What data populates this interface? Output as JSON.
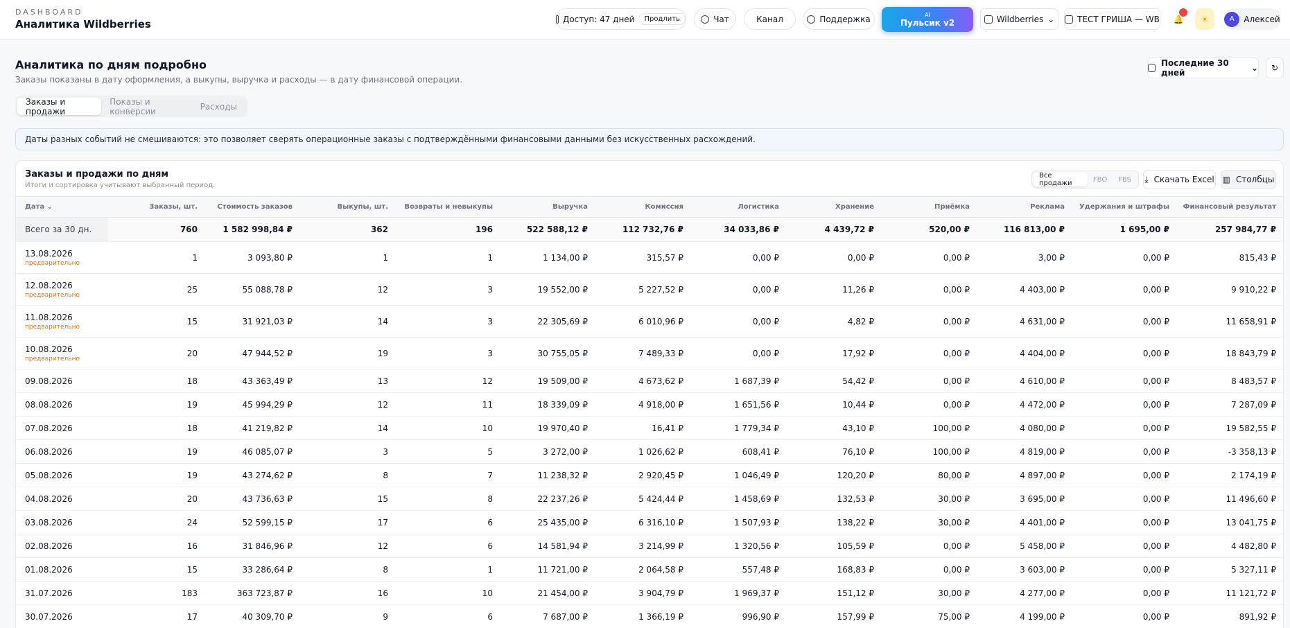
{
  "header": {
    "eyebrow": "DASHBOARD",
    "title": "Аналитика Wildberries",
    "access": "Доступ: 47 дней",
    "extend": "Продлить",
    "chat": "Чат",
    "channel": "Канал",
    "support": "Поддержка",
    "ai_badge": "AI",
    "ai_name": "Пульсик v2",
    "marketplace": "Wildberries",
    "store": "ТЕСТ ГРИША — WB",
    "avatar": "А",
    "user": "Алексей"
  },
  "section": {
    "title": "Аналитика по дням подробно",
    "subtitle": "Заказы показаны в дату оформления, а выкупы, выручка и расходы — в дату финансовой операции.",
    "period": "Последние 30 дней",
    "tabs": [
      "Заказы и продажи",
      "Показы и конверсии",
      "Расходы"
    ],
    "banner": "Даты разных событий не смешиваются: это позволяет сверять операционные заказы с подтверждёнными финансовыми данными без искусственных расхождений."
  },
  "card": {
    "title": "Заказы и продажи по дням",
    "subtitle": "Итоги и сортировка учитывают выбранный период.",
    "filters": [
      "Все продажи",
      "FBO",
      "FBS"
    ],
    "excel": "Скачать Excel",
    "columns_button": "Столбцы"
  },
  "table": {
    "columns": [
      "Дата",
      "Заказы, шт.",
      "Стоимость заказов",
      "Выкупы, шт.",
      "Возвраты и невыкупы",
      "Выручка",
      "Комиссия",
      "Логистика",
      "Хранение",
      "Приёмка",
      "Реклама",
      "Удержания и штрафы",
      "Финансовый результат"
    ],
    "total": {
      "label": "Всего за 30 дн.",
      "cells": [
        "760",
        "1 582 998,84 ₽",
        "362",
        "196",
        "522 588,12 ₽",
        "112 732,76 ₽",
        "34 033,86 ₽",
        "4 439,72 ₽",
        "520,00 ₽",
        "116 813,00 ₽",
        "1 695,00 ₽",
        "257 984,77 ₽"
      ]
    },
    "rows": [
      {
        "date": "13.08.2026",
        "note": "предварительно",
        "cells": [
          "1",
          "3 093,80 ₽",
          "1",
          "1",
          "1 134,00 ₽",
          "315,57 ₽",
          "0,00 ₽",
          "0,00 ₽",
          "0,00 ₽",
          "3,00 ₽",
          "0,00 ₽",
          "815,43 ₽"
        ]
      },
      {
        "date": "12.08.2026",
        "note": "предварительно",
        "cells": [
          "25",
          "55 088,78 ₽",
          "12",
          "3",
          "19 552,00 ₽",
          "5 227,52 ₽",
          "0,00 ₽",
          "11,26 ₽",
          "0,00 ₽",
          "4 403,00 ₽",
          "0,00 ₽",
          "9 910,22 ₽"
        ]
      },
      {
        "date": "11.08.2026",
        "note": "предварительно",
        "cells": [
          "15",
          "31 921,03 ₽",
          "14",
          "3",
          "22 305,69 ₽",
          "6 010,96 ₽",
          "0,00 ₽",
          "4,82 ₽",
          "0,00 ₽",
          "4 631,00 ₽",
          "0,00 ₽",
          "11 658,91 ₽"
        ]
      },
      {
        "date": "10.08.2026",
        "note": "предварительно",
        "cells": [
          "20",
          "47 944,52 ₽",
          "19",
          "3",
          "30 755,05 ₽",
          "7 489,33 ₽",
          "0,00 ₽",
          "17,92 ₽",
          "0,00 ₽",
          "4 404,00 ₽",
          "0,00 ₽",
          "18 843,79 ₽"
        ]
      },
      {
        "date": "09.08.2026",
        "cells": [
          "18",
          "43 363,49 ₽",
          "13",
          "12",
          "19 509,00 ₽",
          "4 673,62 ₽",
          "1 687,39 ₽",
          "54,42 ₽",
          "0,00 ₽",
          "4 610,00 ₽",
          "0,00 ₽",
          "8 483,57 ₽"
        ]
      },
      {
        "date": "08.08.2026",
        "cells": [
          "19",
          "45 994,29 ₽",
          "12",
          "11",
          "18 339,09 ₽",
          "4 918,00 ₽",
          "1 651,56 ₽",
          "10,44 ₽",
          "0,00 ₽",
          "4 472,00 ₽",
          "0,00 ₽",
          "7 287,09 ₽"
        ]
      },
      {
        "date": "07.08.2026",
        "cells": [
          "18",
          "41 219,82 ₽",
          "14",
          "10",
          "19 970,40 ₽",
          "16,41 ₽",
          "1 779,34 ₽",
          "43,10 ₽",
          "100,00 ₽",
          "4 080,00 ₽",
          "0,00 ₽",
          "19 582,55 ₽"
        ]
      },
      {
        "date": "06.08.2026",
        "cells": [
          "19",
          "46 085,07 ₽",
          "3",
          "5",
          "3 272,00 ₽",
          "1 026,62 ₽",
          "608,41 ₽",
          "76,10 ₽",
          "100,00 ₽",
          "4 819,00 ₽",
          "0,00 ₽",
          "-3 358,13 ₽"
        ]
      },
      {
        "date": "05.08.2026",
        "cells": [
          "19",
          "43 274,62 ₽",
          "8",
          "7",
          "11 238,32 ₽",
          "2 920,45 ₽",
          "1 046,49 ₽",
          "120,20 ₽",
          "80,00 ₽",
          "4 897,00 ₽",
          "0,00 ₽",
          "2 174,19 ₽"
        ]
      },
      {
        "date": "04.08.2026",
        "cells": [
          "20",
          "43 736,63 ₽",
          "15",
          "8",
          "22 237,26 ₽",
          "5 424,44 ₽",
          "1 458,69 ₽",
          "132,53 ₽",
          "30,00 ₽",
          "3 695,00 ₽",
          "0,00 ₽",
          "11 496,60 ₽"
        ]
      },
      {
        "date": "03.08.2026",
        "cells": [
          "24",
          "52 599,15 ₽",
          "17",
          "6",
          "25 435,00 ₽",
          "6 316,10 ₽",
          "1 507,93 ₽",
          "138,22 ₽",
          "30,00 ₽",
          "4 401,00 ₽",
          "0,00 ₽",
          "13 041,75 ₽"
        ]
      },
      {
        "date": "02.08.2026",
        "cells": [
          "16",
          "31 846,96 ₽",
          "12",
          "6",
          "14 581,94 ₽",
          "3 214,99 ₽",
          "1 320,56 ₽",
          "105,59 ₽",
          "0,00 ₽",
          "5 458,00 ₽",
          "0,00 ₽",
          "4 482,80 ₽"
        ]
      },
      {
        "date": "01.08.2026",
        "cells": [
          "15",
          "33 286,64 ₽",
          "8",
          "1",
          "11 721,00 ₽",
          "2 064,58 ₽",
          "557,48 ₽",
          "168,83 ₽",
          "0,00 ₽",
          "3 603,00 ₽",
          "0,00 ₽",
          "5 327,11 ₽"
        ]
      },
      {
        "date": "31.07.2026",
        "cells": [
          "183",
          "363 723,87 ₽",
          "16",
          "10",
          "21 454,00 ₽",
          "3 904,79 ₽",
          "1 969,37 ₽",
          "151,12 ₽",
          "30,00 ₽",
          "4 277,00 ₽",
          "0,00 ₽",
          "11 121,72 ₽"
        ]
      },
      {
        "date": "30.07.2026",
        "cells": [
          "17",
          "40 309,70 ₽",
          "9",
          "6",
          "7 687,00 ₽",
          "1 366,19 ₽",
          "996,90 ₽",
          "157,99 ₽",
          "75,00 ₽",
          "4 199,00 ₽",
          "0,00 ₽",
          "891,92 ₽"
        ]
      }
    ]
  }
}
